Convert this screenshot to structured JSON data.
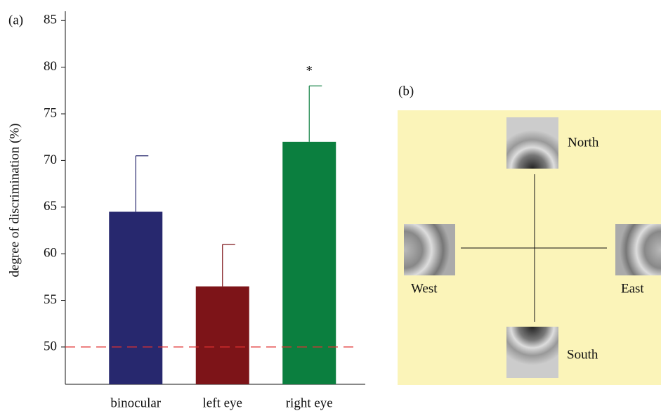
{
  "chart_data": {
    "type": "bar",
    "panel_label": "(a)",
    "ylabel": "degree of discrimination (%)",
    "categories": [
      "binocular",
      "left eye",
      "right eye"
    ],
    "values": [
      64.5,
      56.5,
      72
    ],
    "errors": [
      6,
      4.5,
      6
    ],
    "colors": [
      "#27286e",
      "#7d1418",
      "#0b7f3f"
    ],
    "significance": [
      null,
      null,
      "*"
    ],
    "reference_line": {
      "value": 50,
      "color": "#e03030"
    },
    "ylim": [
      46,
      86
    ],
    "yticks": [
      50,
      55,
      60,
      65,
      70,
      75,
      80,
      85
    ]
  },
  "panel_b": {
    "label": "(b)",
    "nodes": [
      {
        "label": "North"
      },
      {
        "label": "West"
      },
      {
        "label": "East"
      },
      {
        "label": "South"
      }
    ]
  }
}
